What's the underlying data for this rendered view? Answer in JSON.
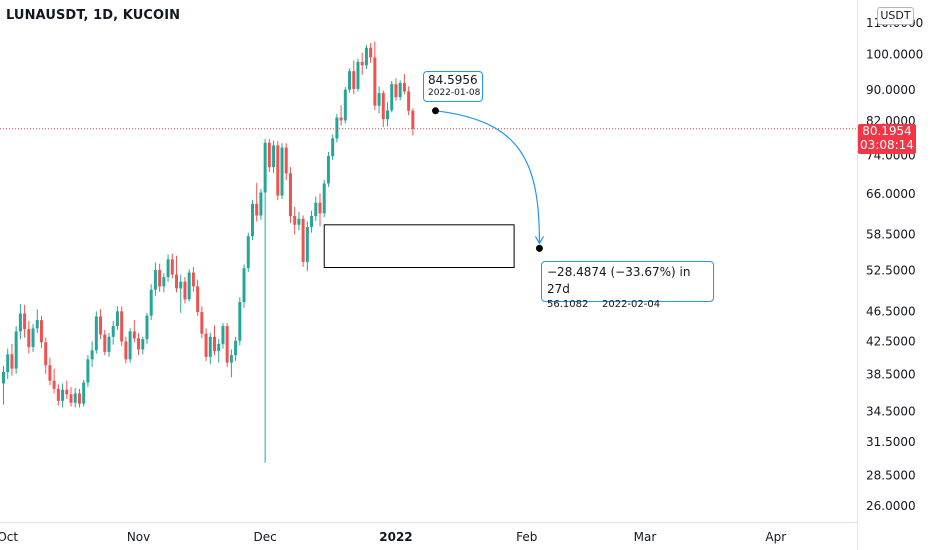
{
  "header": {
    "title": "LUNAUSDT, 1D, KUCOIN",
    "currency": "USDT"
  },
  "last_price": {
    "value": "80.1954",
    "countdown": "03:08:14",
    "color": "#f23645"
  },
  "colors": {
    "up": "#26a69a",
    "down": "#ef5350",
    "accent": "#2196f3"
  },
  "projection": {
    "start_price": "84.5956",
    "start_date": "2022-01-08",
    "change_text": "−28.4874 (−33.67%) in 27d",
    "end_price": "56.1082",
    "end_date": "2022-02-04"
  },
  "chart_data": {
    "type": "candlestick",
    "title": "LUNAUSDT, 1D, KUCOIN",
    "y_scale": "log",
    "ylim": [
      24.8,
      116
    ],
    "y_ticks": [
      {
        "value": 110,
        "label": "110.0000"
      },
      {
        "value": 100,
        "label": "100.0000"
      },
      {
        "value": 90,
        "label": "90.0000"
      },
      {
        "value": 82,
        "label": "82.0000"
      },
      {
        "value": 74,
        "label": "74.0000"
      },
      {
        "value": 66,
        "label": "66.0000"
      },
      {
        "value": 58.5,
        "label": "58.5000"
      },
      {
        "value": 52.5,
        "label": "52.5000"
      },
      {
        "value": 46.5,
        "label": "46.5000"
      },
      {
        "value": 42.5,
        "label": "42.5000"
      },
      {
        "value": 38.5,
        "label": "38.5000"
      },
      {
        "value": 34.5,
        "label": "34.5000"
      },
      {
        "value": 31.5,
        "label": "31.5000"
      },
      {
        "value": 28.5,
        "label": "28.5000"
      },
      {
        "value": 26,
        "label": "26.0000"
      }
    ],
    "x_ticks": [
      {
        "date": "2021-10-01",
        "label": "Oct",
        "bold": false
      },
      {
        "date": "2021-11-01",
        "label": "Nov",
        "bold": false
      },
      {
        "date": "2021-12-01",
        "label": "Dec",
        "bold": false
      },
      {
        "date": "2022-01-01",
        "label": "2022",
        "bold": true
      },
      {
        "date": "2022-02-01",
        "label": "Feb",
        "bold": false
      },
      {
        "date": "2022-03-01",
        "label": "Mar",
        "bold": false
      },
      {
        "date": "2022-04-01",
        "label": "Apr",
        "bold": false
      }
    ],
    "last_price": 80.1954,
    "start_date": "2021-09-30",
    "candles": [
      [
        37.5,
        39.5,
        35.2,
        38.8
      ],
      [
        38.8,
        41.6,
        38.0,
        40.9
      ],
      [
        40.9,
        42.2,
        38.4,
        39.2
      ],
      [
        39.2,
        44.5,
        38.6,
        43.8
      ],
      [
        43.8,
        47.5,
        42.8,
        46.2
      ],
      [
        46.2,
        47.4,
        43.0,
        44.1
      ],
      [
        44.1,
        45.2,
        41.0,
        41.8
      ],
      [
        41.8,
        44.8,
        41.2,
        44.2
      ],
      [
        44.2,
        46.8,
        43.6,
        45.3
      ],
      [
        45.3,
        45.9,
        41.7,
        42.4
      ],
      [
        42.4,
        43.0,
        38.6,
        39.6
      ],
      [
        39.6,
        40.5,
        37.3,
        37.8
      ],
      [
        37.8,
        39.2,
        36.4,
        36.9
      ],
      [
        36.9,
        37.4,
        35.1,
        35.6
      ],
      [
        35.6,
        37.5,
        34.9,
        36.8
      ],
      [
        36.8,
        37.8,
        35.8,
        36.3
      ],
      [
        36.3,
        37.1,
        35.0,
        35.4
      ],
      [
        35.4,
        37.0,
        34.9,
        36.4
      ],
      [
        36.4,
        36.9,
        34.9,
        35.3
      ],
      [
        35.3,
        37.9,
        35.0,
        37.6
      ],
      [
        37.6,
        40.8,
        37.1,
        40.3
      ],
      [
        40.3,
        42.5,
        39.4,
        41.4
      ],
      [
        41.4,
        46.5,
        41.0,
        45.8
      ],
      [
        45.8,
        46.8,
        42.8,
        43.4
      ],
      [
        43.4,
        44.0,
        40.8,
        41.2
      ],
      [
        41.2,
        43.6,
        40.6,
        43.1
      ],
      [
        43.1,
        45.2,
        42.1,
        44.5
      ],
      [
        44.5,
        47.2,
        44.0,
        46.5
      ],
      [
        46.5,
        47.2,
        41.9,
        42.5
      ],
      [
        42.5,
        43.1,
        39.8,
        40.3
      ],
      [
        40.3,
        44.2,
        39.9,
        43.8
      ],
      [
        43.8,
        45.3,
        42.4,
        42.9
      ],
      [
        42.9,
        43.6,
        40.8,
        41.5
      ],
      [
        41.5,
        43.1,
        40.9,
        42.8
      ],
      [
        42.8,
        46.3,
        42.2,
        45.9
      ],
      [
        45.9,
        50.4,
        45.3,
        49.6
      ],
      [
        49.6,
        53.8,
        48.7,
        52.6
      ],
      [
        52.6,
        53.6,
        49.3,
        50.1
      ],
      [
        50.1,
        52.1,
        49.2,
        51.5
      ],
      [
        51.5,
        55.1,
        50.8,
        54.3
      ],
      [
        54.3,
        55.2,
        51.3,
        51.9
      ],
      [
        51.9,
        54.9,
        49.2,
        49.8
      ],
      [
        49.8,
        51.9,
        46.3,
        50.8
      ],
      [
        50.8,
        51.5,
        47.6,
        48.2
      ],
      [
        48.2,
        52.7,
        47.9,
        52.2
      ],
      [
        52.2,
        53.1,
        49.3,
        50.1
      ],
      [
        50.1,
        51.1,
        45.9,
        46.4
      ],
      [
        46.4,
        47.2,
        42.9,
        43.5
      ],
      [
        43.5,
        44.2,
        40.1,
        40.6
      ],
      [
        40.6,
        43.6,
        39.7,
        43.1
      ],
      [
        43.1,
        44.6,
        40.8,
        41.3
      ],
      [
        41.3,
        42.8,
        39.9,
        42.2
      ],
      [
        42.2,
        44.9,
        41.6,
        44.5
      ],
      [
        44.5,
        44.9,
        39.4,
        39.9
      ],
      [
        39.9,
        41.5,
        38.2,
        40.8
      ],
      [
        40.8,
        43.1,
        40.1,
        42.6
      ],
      [
        42.6,
        48.5,
        42.0,
        47.8
      ],
      [
        47.8,
        53.5,
        47.0,
        52.9
      ],
      [
        52.9,
        58.8,
        52.3,
        58.2
      ],
      [
        58.2,
        64.8,
        57.5,
        64.1
      ],
      [
        64.1,
        68.2,
        60.8,
        61.9
      ],
      [
        61.9,
        67.0,
        61.1,
        66.3
      ],
      [
        66.3,
        77.8,
        29.6,
        76.9
      ],
      [
        76.9,
        77.8,
        70.5,
        71.5
      ],
      [
        71.5,
        77.4,
        70.3,
        76.3
      ],
      [
        76.3,
        77.3,
        64.8,
        65.7
      ],
      [
        65.7,
        76.8,
        65.0,
        75.8
      ],
      [
        75.8,
        76.8,
        68.8,
        70.2
      ],
      [
        70.2,
        71.5,
        60.5,
        61.8
      ],
      [
        61.8,
        63.5,
        58.5,
        60.2
      ],
      [
        60.2,
        62.6,
        59.2,
        61.3
      ],
      [
        61.3,
        61.9,
        53.1,
        53.9
      ],
      [
        53.9,
        60.8,
        52.4,
        59.8
      ],
      [
        59.8,
        62.8,
        58.8,
        61.8
      ],
      [
        61.8,
        65.5,
        60.9,
        64.3
      ],
      [
        64.3,
        66.1,
        59.9,
        62.3
      ],
      [
        62.3,
        68.8,
        61.6,
        68.1
      ],
      [
        68.1,
        74.8,
        67.4,
        73.9
      ],
      [
        73.9,
        78.8,
        73.1,
        77.9
      ],
      [
        77.9,
        83.8,
        77.0,
        82.9
      ],
      [
        82.9,
        86.0,
        80.9,
        82.2
      ],
      [
        82.2,
        90.8,
        81.5,
        90.1
      ],
      [
        90.1,
        96.0,
        89.3,
        95.2
      ],
      [
        95.2,
        98.3,
        88.9,
        90.3
      ],
      [
        90.3,
        98.8,
        89.6,
        97.9
      ],
      [
        97.9,
        100.6,
        94.2,
        96.9
      ],
      [
        96.9,
        103.0,
        95.8,
        102.1
      ],
      [
        102.1,
        103.6,
        97.6,
        99.2
      ],
      [
        99.2,
        104.0,
        84.8,
        85.9
      ],
      [
        85.9,
        91.0,
        84.0,
        89.2
      ],
      [
        89.2,
        89.9,
        80.6,
        82.5
      ],
      [
        82.5,
        86.8,
        80.8,
        84.7
      ],
      [
        84.7,
        92.5,
        84.2,
        91.6
      ],
      [
        91.6,
        93.2,
        87.2,
        88.1
      ],
      [
        88.1,
        92.6,
        87.3,
        91.9
      ],
      [
        91.9,
        94.4,
        88.9,
        89.6
      ],
      [
        89.6,
        91.0,
        83.5,
        84.6
      ],
      [
        84.6,
        85.2,
        78.6,
        80.2
      ]
    ]
  }
}
